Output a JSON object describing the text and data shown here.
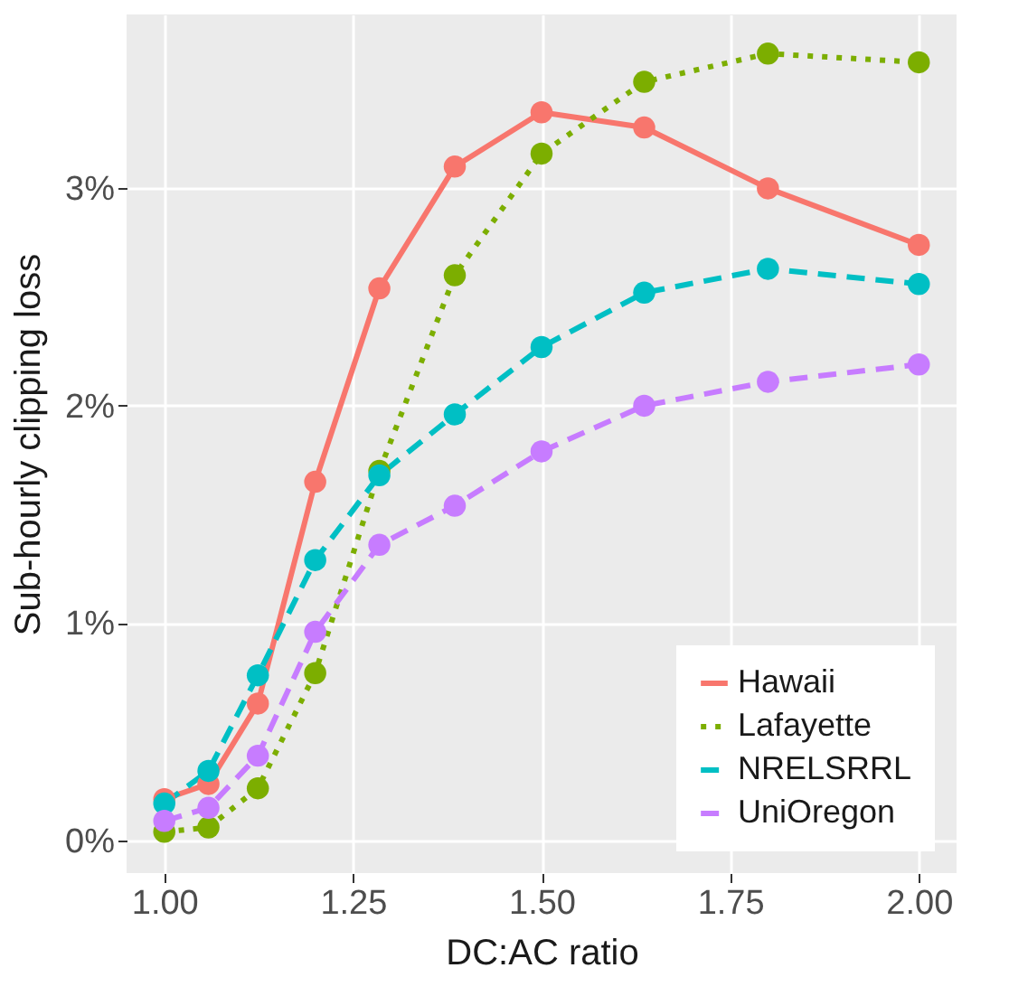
{
  "chart_data": {
    "type": "line",
    "xlabel": "DC:AC ratio",
    "ylabel": "Sub-hourly clipping loss",
    "x": [
      1.0,
      1.0585,
      1.124,
      1.2,
      1.285,
      1.385,
      1.5,
      1.636,
      1.8,
      2.0
    ],
    "series": [
      {
        "name": "Hawaii",
        "color": "#f8766d",
        "line_style": "solid",
        "values": [
          0.19,
          0.26,
          0.63,
          1.65,
          2.54,
          3.1,
          3.35,
          3.28,
          3.0,
          2.74
        ]
      },
      {
        "name": "Lafayette",
        "color": "#7cae00",
        "line_style": "dotted",
        "values": [
          0.04,
          0.06,
          0.24,
          0.77,
          1.7,
          2.6,
          3.16,
          3.49,
          3.62,
          3.58
        ]
      },
      {
        "name": "NRELSRRL",
        "color": "#00bfc4",
        "line_style": "dashed",
        "values": [
          0.17,
          0.32,
          0.76,
          1.29,
          1.68,
          1.96,
          2.27,
          2.52,
          2.63,
          2.56
        ]
      },
      {
        "name": "UniOregon",
        "color": "#c77cff",
        "line_style": "dashed",
        "values": [
          0.09,
          0.15,
          0.39,
          0.96,
          1.36,
          1.54,
          1.79,
          2.0,
          2.11,
          2.19
        ]
      }
    ],
    "xlim": [
      0.95,
      2.05
    ],
    "xticks": [
      {
        "value": 1,
        "label": "1.00"
      },
      {
        "value": 1.25,
        "label": "1.25"
      },
      {
        "value": 1.5,
        "label": "1.50"
      },
      {
        "value": 1.75,
        "label": "1.75"
      },
      {
        "value": 2,
        "label": "2.00"
      }
    ],
    "ylim": [
      -0.15,
      3.8
    ],
    "yticks": [
      {
        "value": 0,
        "label": "0%"
      },
      {
        "value": 1,
        "label": "1%"
      },
      {
        "value": 2,
        "label": "2%"
      },
      {
        "value": 3,
        "label": "3%"
      }
    ],
    "grid": true,
    "legend": "bottom right",
    "marker": "circle"
  }
}
